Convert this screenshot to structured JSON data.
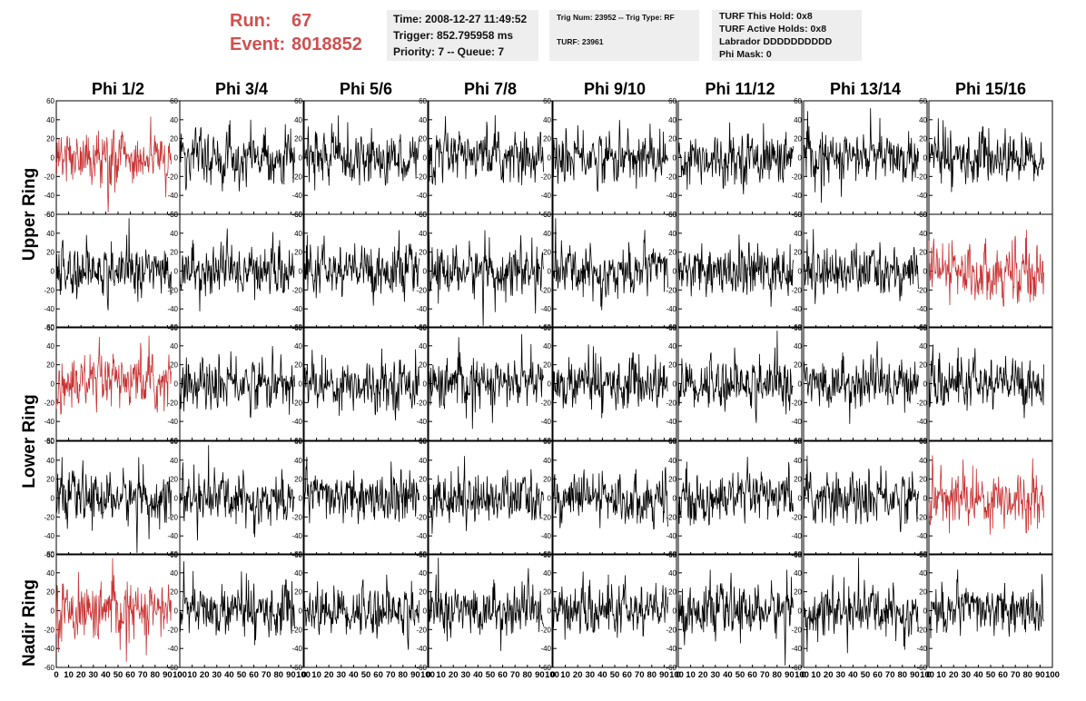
{
  "header": {
    "run_label": "Run:",
    "run_value": "67",
    "event_label": "Event:",
    "event_value": "8018852",
    "time_line": "Time: 2008-12-27 11:49:52",
    "trigger_line": "Trigger: 852.795958 ms",
    "priority_line": "Priority: 7 -- Queue: 7",
    "trig_line": "Trig Num: 23952 -- Trig Type: RF",
    "turf_line": "TURF: 23961",
    "hold_line": "TURF This Hold: 0x8",
    "active_line": "TURF Active Holds: 0x8",
    "labrador_line": "Labrador DDDDDDDDDD",
    "mask_line": "Phi Mask: 0"
  },
  "colors": {
    "highlight": "#c83232",
    "trace": "#000000",
    "header_text": "#d05050",
    "info_bg": "#eeeeee"
  },
  "chart_data": {
    "type": "line",
    "columns": [
      "Phi 1/2",
      "Phi 3/4",
      "Phi 5/6",
      "Phi 7/8",
      "Phi 9/10",
      "Phi 11/12",
      "Phi 13/14",
      "Phi 15/16"
    ],
    "row_groups": [
      "Upper Ring",
      "Lower Ring",
      "Nadir Ring"
    ],
    "panel_rows": 5,
    "xlim": [
      0,
      100
    ],
    "ylim": [
      -60,
      60
    ],
    "yticks": [
      -60,
      -40,
      -20,
      0,
      20,
      40,
      60
    ],
    "xticks": [
      0,
      10,
      20,
      30,
      40,
      50,
      60,
      70,
      80,
      90,
      100
    ],
    "samples_per_trace": 260,
    "highlighted_panels": [
      [
        0,
        0
      ],
      [
        1,
        7
      ],
      [
        2,
        0
      ],
      [
        3,
        7
      ],
      [
        4,
        0
      ]
    ],
    "typical_amplitude": 20
  }
}
